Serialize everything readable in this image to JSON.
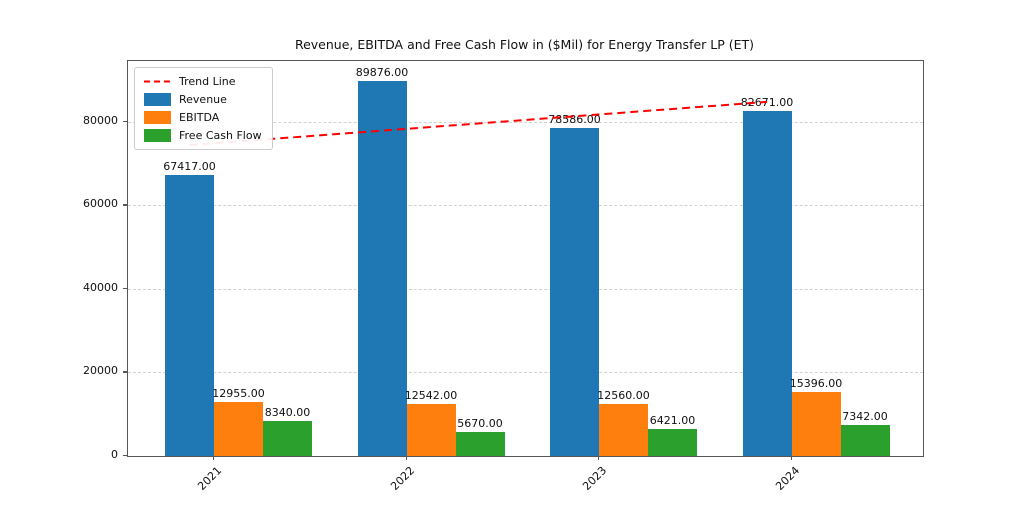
{
  "chart_data": {
    "type": "bar",
    "title": "Revenue, EBITDA and Free Cash Flow in ($Mil) for Energy Transfer LP (ET)",
    "categories": [
      "2021",
      "2022",
      "2023",
      "2024"
    ],
    "series": [
      {
        "name": "Revenue",
        "color": "#1f77b4",
        "values": [
          67417,
          89876,
          78586,
          82671
        ]
      },
      {
        "name": "EBITDA",
        "color": "#ff7f0e",
        "values": [
          12955,
          12542,
          12560,
          15396
        ]
      },
      {
        "name": "Free Cash Flow",
        "color": "#2ca02c",
        "values": [
          8340,
          5670,
          6421,
          7342
        ]
      }
    ],
    "trend": {
      "name": "Trend Line",
      "color": "#ff0000",
      "style": "dashed",
      "values": [
        74467,
        77914,
        81361,
        84808
      ]
    },
    "bar_value_labels": [
      [
        "67417.00",
        "89876.00",
        "78586.00",
        "82671.00"
      ],
      [
        "12955.00",
        "12542.00",
        "12560.00",
        "15396.00"
      ],
      [
        "8340.00",
        "5670.00",
        "6421.00",
        "7342.00"
      ]
    ],
    "y_ticks": [
      0,
      20000,
      40000,
      60000,
      80000
    ],
    "ylim": [
      0,
      94600
    ],
    "xlabel": "",
    "ylabel": "",
    "grid": "horizontal-dashed",
    "legend_position": "upper-left",
    "legend_entries": [
      "Trend Line",
      "Revenue",
      "EBITDA",
      "Free Cash Flow"
    ]
  }
}
